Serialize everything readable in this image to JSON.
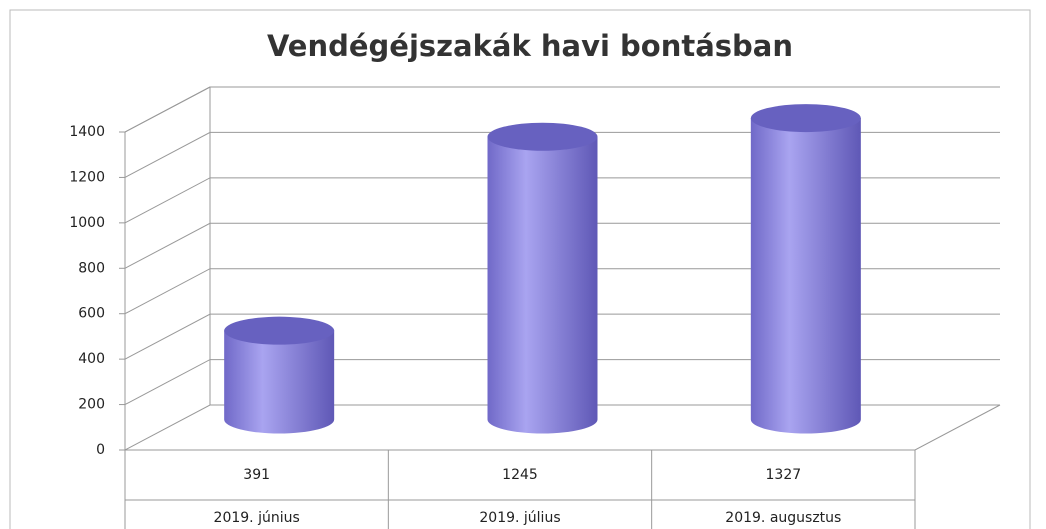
{
  "chart_data": {
    "type": "bar3d",
    "title": "Vendégéjszakák havi bontásban",
    "categories": [
      "2019. június",
      "2019. július",
      "2019. augusztus"
    ],
    "values": [
      391,
      1245,
      1327
    ],
    "color": "#8780dc",
    "ylim": [
      0,
      1400
    ],
    "yticks": [
      0,
      200,
      400,
      600,
      800,
      1000,
      1200,
      1400
    ],
    "grid": true
  }
}
